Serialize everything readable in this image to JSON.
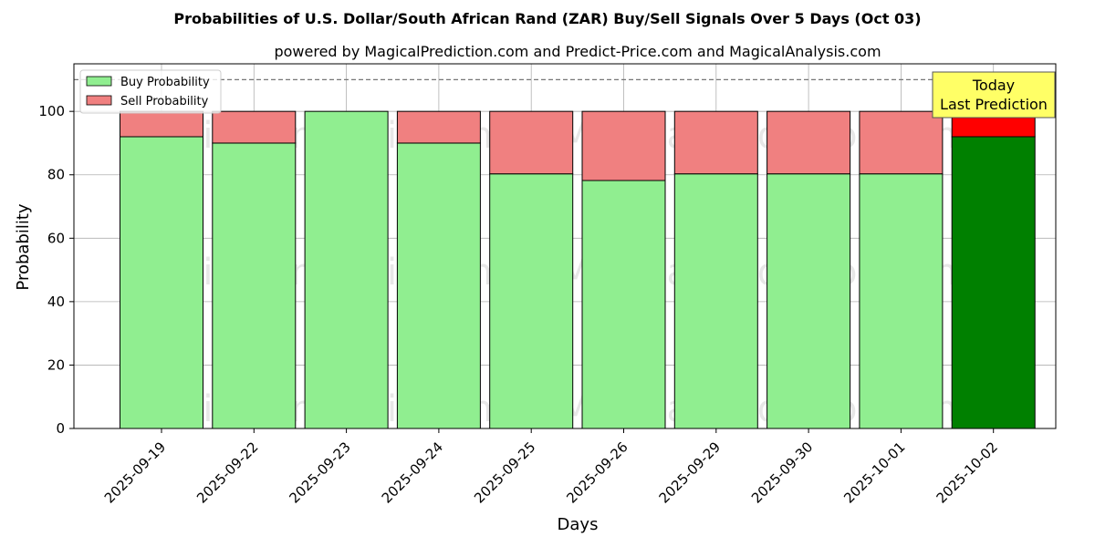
{
  "chart_data": {
    "type": "bar",
    "stacked": true,
    "title": "Probabilities of U.S. Dollar/South African Rand (ZAR) Buy/Sell Signals Over 5 Days (Oct 03)",
    "subtitle": "powered by MagicalPrediction.com and Predict-Price.com and MagicalAnalysis.com",
    "xlabel": "Days",
    "ylabel": "Probability",
    "ylim": [
      0,
      115
    ],
    "yticks": [
      0,
      20,
      40,
      60,
      80,
      100
    ],
    "grid": true,
    "reference_line": 110,
    "legend_position": "top-left",
    "categories": [
      "2025-09-19",
      "2025-09-22",
      "2025-09-23",
      "2025-09-24",
      "2025-09-25",
      "2025-09-26",
      "2025-09-29",
      "2025-09-30",
      "2025-10-01",
      "2025-10-02"
    ],
    "series": [
      {
        "name": "Buy Probability",
        "values": [
          92,
          90,
          100,
          90,
          80.3,
          78.2,
          80.3,
          80.3,
          80.3,
          92
        ],
        "color": "#90ee90",
        "highlight_color": "#008000"
      },
      {
        "name": "Sell Probability",
        "values": [
          8,
          10,
          0,
          10,
          19.7,
          21.8,
          19.7,
          19.7,
          19.7,
          8
        ],
        "color": "#f08080",
        "highlight_color": "#ff0000"
      }
    ],
    "highlight_index": 9,
    "annotation": {
      "lines": [
        "Today",
        "Last Prediction"
      ],
      "bg": "#ffff66"
    },
    "watermarks": [
      "MagicalAnalysis.com",
      "MagicalPrediction.com"
    ]
  }
}
